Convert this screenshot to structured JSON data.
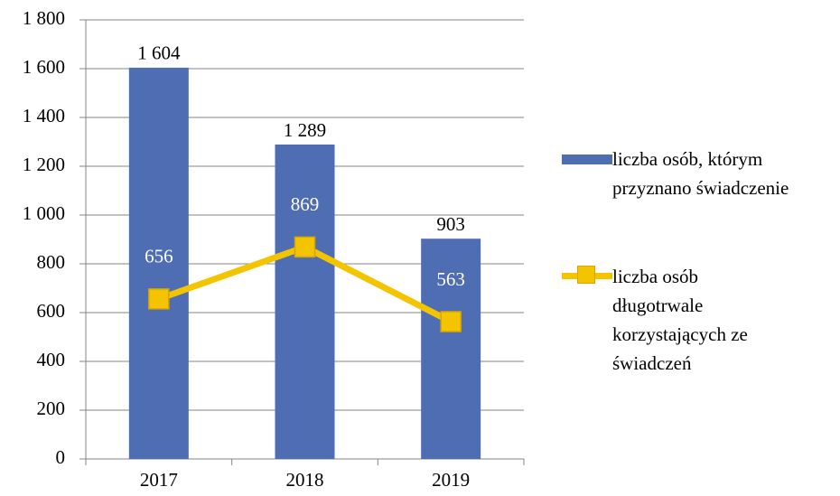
{
  "chart_data": {
    "type": "bar",
    "categories": [
      "2017",
      "2018",
      "2019"
    ],
    "series": [
      {
        "name": "liczba osób, którym przyznano świadczenie",
        "type": "bar",
        "color": "#4e6db2",
        "values": [
          1604,
          1289,
          903
        ],
        "value_labels": [
          "1 604",
          "1 289",
          "903"
        ]
      },
      {
        "name": "liczba osób długotrwale korzystających ze świadczeń",
        "type": "line",
        "color": "#f5c400",
        "values": [
          656,
          869,
          563
        ]
      }
    ],
    "ylim": [
      0,
      1800
    ],
    "yticks": [
      0,
      200,
      400,
      600,
      800,
      {
        "value": 1000,
        "label": "1 000"
      },
      {
        "value": 1200,
        "label": "1 200"
      },
      {
        "value": 1400,
        "label": "1 400"
      },
      {
        "value": 1600,
        "label": "1 600"
      },
      {
        "value": 1800,
        "label": "1 800"
      }
    ],
    "grid": true,
    "legend": "right"
  }
}
